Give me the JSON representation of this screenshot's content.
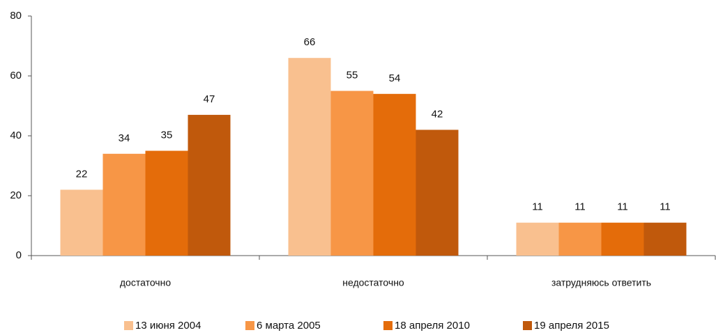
{
  "chart_data": {
    "type": "bar",
    "categories": [
      "достаточно",
      "недостаточно",
      "затрудняюсь ответить"
    ],
    "series": [
      {
        "name": "13 июня 2004",
        "color": "#f9c08f",
        "values": [
          22,
          66,
          11
        ]
      },
      {
        "name": "6 марта 2005",
        "color": "#f79646",
        "values": [
          34,
          55,
          11
        ]
      },
      {
        "name": "18 апреля 2010",
        "color": "#e46c0a",
        "values": [
          35,
          54,
          11
        ]
      },
      {
        "name": "19 апреля 2015",
        "color": "#c0590c",
        "values": [
          47,
          42,
          11
        ]
      }
    ],
    "ylim": [
      0,
      80
    ],
    "yticks": [
      0,
      20,
      40,
      60,
      80
    ],
    "grid": false,
    "legend": "bottom"
  }
}
